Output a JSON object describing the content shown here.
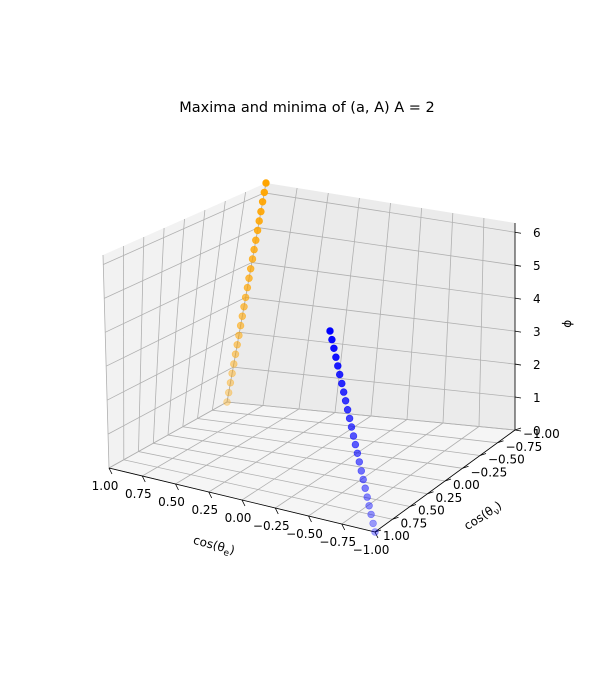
{
  "chart_data": {
    "type": "scatter",
    "title": "Maxima and minima of (a, A) A = 2",
    "axes": {
      "x": {
        "label_base": "cos(θ",
        "label_sub": "e",
        "label_close": ")",
        "range": [
          -1.0,
          1.0
        ],
        "ticks": [
          "1.00",
          "0.75",
          "0.50",
          "0.25",
          "0.00",
          "−0.25",
          "−0.50",
          "−0.75",
          "−1.00"
        ],
        "tick_values": [
          1.0,
          0.75,
          0.5,
          0.25,
          0.0,
          -0.25,
          -0.5,
          -0.75,
          -1.0
        ]
      },
      "y": {
        "label_base": "cos(θ",
        "label_sub": "ν",
        "label_close": ")",
        "range": [
          -1.0,
          1.0
        ],
        "ticks": [
          "−1.00",
          "−0.75",
          "−0.50",
          "−0.25",
          "0.00",
          "0.25",
          "0.50",
          "0.75",
          "1.00"
        ],
        "tick_values": [
          -1.0,
          -0.75,
          -0.5,
          -0.25,
          0.0,
          0.25,
          0.5,
          0.75,
          1.0
        ]
      },
      "z": {
        "label": "ϕ",
        "range": [
          0,
          6.28
        ],
        "ticks": [
          "0",
          "1",
          "2",
          "3",
          "4",
          "5",
          "6"
        ],
        "tick_values": [
          0,
          1,
          2,
          3,
          4,
          5,
          6
        ]
      }
    },
    "grid": true,
    "series": [
      {
        "color": "#ffa500",
        "points": {
          "x": [
            1,
            1,
            1,
            1,
            1,
            1,
            1,
            1,
            1,
            1,
            1,
            1,
            1,
            1,
            1,
            1,
            1,
            1,
            1,
            1,
            1,
            1,
            1,
            1
          ],
          "y": [
            -1,
            -1,
            -1,
            -1,
            -1,
            -1,
            -1,
            -1,
            -1,
            -1,
            -1,
            -1,
            -1,
            -1,
            -1,
            -1,
            -1,
            -1,
            -1,
            -1,
            -1,
            -1,
            -1,
            -1
          ],
          "z": [
            0.0,
            0.27,
            0.55,
            0.82,
            1.09,
            1.37,
            1.64,
            1.91,
            2.19,
            2.46,
            2.73,
            3.0,
            3.28,
            3.55,
            3.82,
            4.1,
            4.37,
            4.64,
            4.92,
            5.19,
            5.46,
            5.74,
            6.01,
            6.28
          ]
        }
      },
      {
        "color": "#0000ff",
        "points": {
          "x": [
            -1,
            -1,
            -1,
            -1,
            -1,
            -1,
            -1,
            -1,
            -1,
            -1,
            -1,
            -1,
            -1,
            -1,
            -1,
            -1,
            -1,
            -1,
            -1,
            -1,
            -1,
            -1,
            -1,
            -1
          ],
          "y": [
            1,
            1,
            1,
            1,
            1,
            1,
            1,
            1,
            1,
            1,
            1,
            1,
            1,
            1,
            1,
            1,
            1,
            1,
            1,
            1,
            1,
            1,
            1,
            1
          ],
          "z": [
            0.0,
            0.27,
            0.55,
            0.82,
            1.09,
            1.37,
            1.64,
            1.91,
            2.19,
            2.46,
            2.73,
            3.0,
            3.28,
            3.55,
            3.82,
            4.1,
            4.37,
            4.64,
            4.92,
            5.19,
            5.46,
            5.74,
            6.01,
            6.28
          ]
        }
      }
    ]
  }
}
